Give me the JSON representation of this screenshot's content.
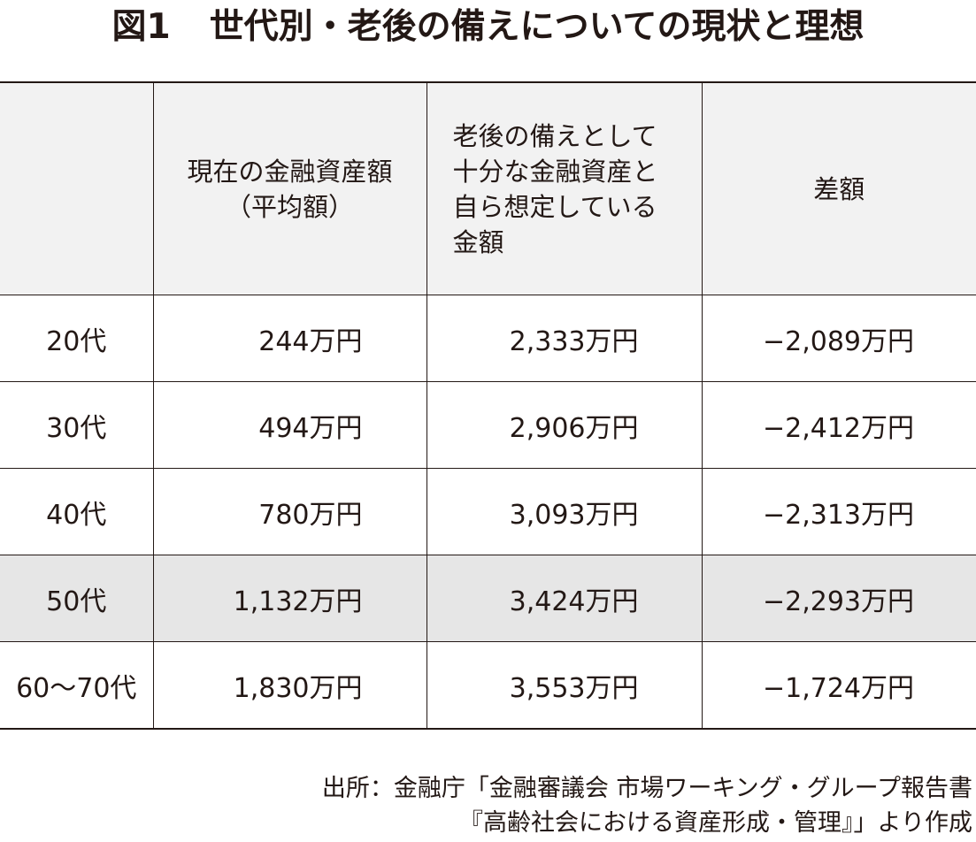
{
  "title": {
    "figure_no": "図1",
    "text": "世代別・老後の備えについての現状と理想"
  },
  "table": {
    "headers": [
      {
        "lines": []
      },
      {
        "lines": [
          "現在の金融資産額",
          "（平均額）"
        ]
      },
      {
        "lines": [
          "老後の備えとして",
          "十分な金融資産と",
          "自ら想定している",
          "金額"
        ]
      },
      {
        "lines": [
          "差額"
        ]
      }
    ],
    "rows": [
      {
        "cells": [
          "20代",
          "244万円",
          "2,333万円",
          "−2,089万円"
        ]
      },
      {
        "cells": [
          "30代",
          "494万円",
          "2,906万円",
          "−2,412万円"
        ]
      },
      {
        "cells": [
          "40代",
          "780万円",
          "3,093万円",
          "−2,313万円"
        ]
      },
      {
        "cells": [
          "50代",
          "1,132万円",
          "3,424万円",
          "−2,293万円"
        ]
      },
      {
        "cells": [
          "60〜70代",
          "1,830万円",
          "3,553万円",
          "−1,724万円"
        ]
      }
    ],
    "highlighted_row_color": "#e6e6e6",
    "header_bg_color": "#f2f2f2"
  },
  "source": {
    "line1": "出所：金融庁「金融審議会 市場ワーキング・グループ報告書",
    "line2": "『高齢社会における資産形成・管理』」より作成"
  }
}
